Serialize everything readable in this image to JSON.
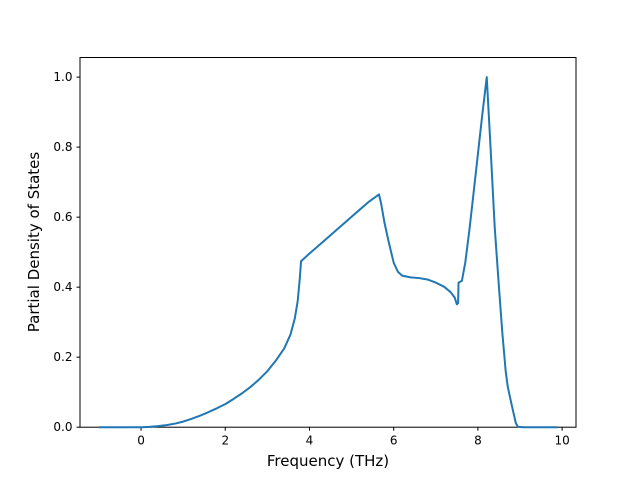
{
  "figure": {
    "background": "#ffffff"
  },
  "chart_data": {
    "type": "line",
    "title": "",
    "xlabel": "Frequency (THz)",
    "ylabel": "Partial Density of States",
    "xlim": [
      -1.45,
      10.33
    ],
    "ylim": [
      0,
      1.056
    ],
    "grid": false,
    "legend": null,
    "line_color": "#1f77b4",
    "line_width": 2,
    "spine_color": "#000000",
    "x_ticks": [
      {
        "v": 0,
        "label": "0"
      },
      {
        "v": 2,
        "label": "2"
      },
      {
        "v": 4,
        "label": "4"
      },
      {
        "v": 6,
        "label": "6"
      },
      {
        "v": 8,
        "label": "8"
      },
      {
        "v": 10,
        "label": "10"
      }
    ],
    "y_ticks": [
      {
        "v": 0.0,
        "label": "0.0"
      },
      {
        "v": 0.2,
        "label": "0.2"
      },
      {
        "v": 0.4,
        "label": "0.4"
      },
      {
        "v": 0.6,
        "label": "0.6"
      },
      {
        "v": 0.8,
        "label": "0.8"
      },
      {
        "v": 1.0,
        "label": "1.0"
      }
    ],
    "series": [
      {
        "name": "partial-dos",
        "x": [
          -1.0,
          -0.5,
          0.0,
          0.2,
          0.4,
          0.6,
          0.8,
          1.0,
          1.2,
          1.4,
          1.6,
          1.8,
          2.0,
          2.2,
          2.4,
          2.6,
          2.8,
          3.0,
          3.2,
          3.4,
          3.55,
          3.65,
          3.72,
          3.77,
          3.8,
          4.0,
          4.2,
          4.4,
          4.6,
          4.8,
          5.0,
          5.2,
          5.4,
          5.55,
          5.65,
          5.7,
          5.78,
          5.88,
          6.0,
          6.1,
          6.2,
          6.4,
          6.6,
          6.8,
          7.0,
          7.2,
          7.35,
          7.45,
          7.5,
          7.53,
          7.54,
          7.62,
          7.7,
          7.8,
          7.9,
          8.0,
          8.1,
          8.21,
          8.3,
          8.4,
          8.5,
          8.58,
          8.66,
          8.71,
          8.8,
          8.9,
          8.95,
          9.1,
          9.3,
          9.5,
          9.7,
          9.9
        ],
        "y": [
          0,
          0,
          0,
          0.001,
          0.003,
          0.006,
          0.01,
          0.016,
          0.024,
          0.033,
          0.043,
          0.054,
          0.066,
          0.081,
          0.097,
          0.115,
          0.136,
          0.16,
          0.19,
          0.225,
          0.265,
          0.31,
          0.36,
          0.425,
          0.474,
          0.496,
          0.517,
          0.538,
          0.559,
          0.58,
          0.601,
          0.622,
          0.643,
          0.656,
          0.665,
          0.64,
          0.585,
          0.53,
          0.47,
          0.444,
          0.433,
          0.428,
          0.426,
          0.422,
          0.413,
          0.401,
          0.386,
          0.37,
          0.351,
          0.355,
          0.413,
          0.418,
          0.47,
          0.565,
          0.672,
          0.78,
          0.888,
          1.0,
          0.8,
          0.57,
          0.4,
          0.27,
          0.16,
          0.115,
          0.065,
          0.012,
          0.001,
          0,
          0,
          0,
          0,
          0
        ]
      }
    ]
  }
}
